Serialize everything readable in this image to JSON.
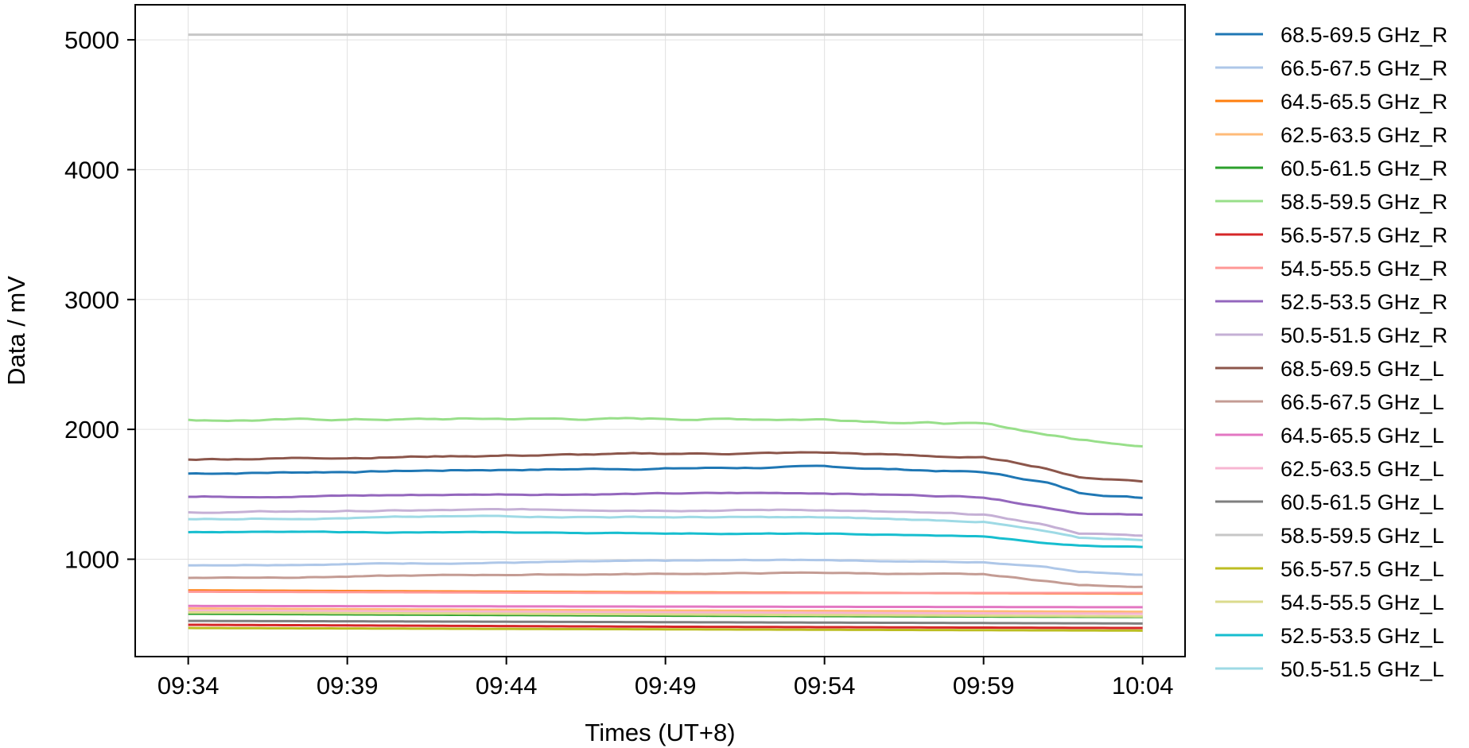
{
  "chart_data": {
    "type": "line",
    "title": "",
    "xlabel": "Times (UT+8)",
    "ylabel": "Data / mV",
    "x_ticks": [
      "09:34",
      "09:39",
      "09:44",
      "09:49",
      "09:54",
      "09:59",
      "10:04"
    ],
    "x_range": [
      "09:32:20",
      "10:05:20"
    ],
    "x_data_range": [
      "09:34",
      "10:04"
    ],
    "ylim": [
      250,
      5270
    ],
    "y_ticks": [
      1000,
      2000,
      3000,
      4000,
      5000
    ],
    "grid": true,
    "legend_position": "outside-right",
    "series": [
      {
        "name": "68.5-69.5 GHz_R",
        "color": "#1f77b4",
        "x": [
          "09:34",
          "09:44",
          "09:54",
          "09:59",
          "10:01",
          "10:02",
          "10:04"
        ],
        "values": [
          1660,
          1690,
          1710,
          1670,
          1590,
          1510,
          1475
        ],
        "noise": 8
      },
      {
        "name": "66.5-67.5 GHz_R",
        "color": "#aec7e8",
        "x": [
          "09:34",
          "09:44",
          "09:54",
          "09:59",
          "10:01",
          "10:02",
          "10:04"
        ],
        "values": [
          955,
          975,
          995,
          975,
          945,
          905,
          885
        ],
        "noise": 5
      },
      {
        "name": "64.5-65.5 GHz_R",
        "color": "#ff7f0e",
        "x": [
          "09:34",
          "09:49",
          "10:04"
        ],
        "values": [
          760,
          745,
          735
        ],
        "noise": 0
      },
      {
        "name": "62.5-63.5 GHz_R",
        "color": "#ffbb78",
        "x": [
          "09:34",
          "09:49",
          "10:04"
        ],
        "values": [
          620,
          605,
          595
        ],
        "noise": 0
      },
      {
        "name": "60.5-61.5 GHz_R",
        "color": "#2ca02c",
        "x": [
          "09:34",
          "09:49",
          "10:04"
        ],
        "values": [
          580,
          565,
          555
        ],
        "noise": 0
      },
      {
        "name": "58.5-59.5 GHz_R",
        "color": "#98df8a",
        "x": [
          "09:34",
          "09:44",
          "09:54",
          "09:59",
          "10:01",
          "10:02",
          "10:04"
        ],
        "values": [
          2070,
          2080,
          2080,
          2040,
          1960,
          1920,
          1880
        ],
        "noise": 10
      },
      {
        "name": "56.5-57.5 GHz_R",
        "color": "#d62728",
        "x": [
          "09:34",
          "09:49",
          "10:04"
        ],
        "values": [
          495,
          480,
          470
        ],
        "noise": 0
      },
      {
        "name": "54.5-55.5 GHz_R",
        "color": "#ff9896",
        "x": [
          "09:34",
          "09:49",
          "10:04"
        ],
        "values": [
          750,
          740,
          740
        ],
        "noise": 0
      },
      {
        "name": "52.5-53.5 GHz_R",
        "color": "#9467bd",
        "x": [
          "09:34",
          "09:44",
          "09:54",
          "09:59",
          "10:01",
          "10:02",
          "10:04"
        ],
        "values": [
          1480,
          1500,
          1510,
          1480,
          1400,
          1360,
          1340
        ],
        "noise": 6
      },
      {
        "name": "50.5-51.5 GHz_R",
        "color": "#c5b0d5",
        "x": [
          "09:34",
          "09:44",
          "09:54",
          "09:59",
          "10:01",
          "10:02",
          "10:04"
        ],
        "values": [
          1360,
          1380,
          1380,
          1340,
          1260,
          1200,
          1180
        ],
        "noise": 6
      },
      {
        "name": "68.5-69.5 GHz_L",
        "color": "#8c564b",
        "x": [
          "09:34",
          "09:44",
          "09:54",
          "09:59",
          "10:01",
          "10:02",
          "10:04"
        ],
        "values": [
          1770,
          1800,
          1820,
          1780,
          1700,
          1630,
          1605
        ],
        "noise": 8
      },
      {
        "name": "66.5-67.5 GHz_L",
        "color": "#c49c94",
        "x": [
          "09:34",
          "09:44",
          "09:54",
          "09:59",
          "10:01",
          "10:02",
          "10:04"
        ],
        "values": [
          855,
          880,
          895,
          880,
          830,
          800,
          790
        ],
        "noise": 5
      },
      {
        "name": "64.5-65.5 GHz_L",
        "color": "#e377c2",
        "x": [
          "09:34",
          "09:49",
          "10:04"
        ],
        "values": [
          640,
          635,
          630
        ],
        "noise": 0
      },
      {
        "name": "62.5-63.5 GHz_L",
        "color": "#f7b6d2",
        "x": [
          "09:34",
          "09:49",
          "10:04"
        ],
        "values": [
          605,
          590,
          580
        ],
        "noise": 0
      },
      {
        "name": "60.5-61.5 GHz_L",
        "color": "#7f7f7f",
        "x": [
          "09:34",
          "09:49",
          "10:04"
        ],
        "values": [
          525,
          515,
          505
        ],
        "noise": 0
      },
      {
        "name": "58.5-59.5 GHz_L",
        "color": "#c7c7c7",
        "x": [
          "09:34",
          "09:49",
          "10:04"
        ],
        "values": [
          5040,
          5040,
          5040
        ],
        "noise": 0
      },
      {
        "name": "56.5-57.5 GHz_L",
        "color": "#bcbd22",
        "x": [
          "09:34",
          "09:49",
          "10:04"
        ],
        "values": [
          470,
          460,
          450
        ],
        "noise": 0
      },
      {
        "name": "54.5-55.5 GHz_L",
        "color": "#dbdb8d",
        "x": [
          "09:34",
          "09:49",
          "10:04"
        ],
        "values": [
          590,
          575,
          560
        ],
        "noise": 0
      },
      {
        "name": "52.5-53.5 GHz_L",
        "color": "#17becf",
        "x": [
          "09:34",
          "09:44",
          "09:54",
          "09:59",
          "10:01",
          "10:02",
          "10:04"
        ],
        "values": [
          1210,
          1205,
          1195,
          1175,
          1120,
          1105,
          1095
        ],
        "noise": 4
      },
      {
        "name": "50.5-51.5 GHz_L",
        "color": "#9edae5",
        "x": [
          "09:34",
          "09:44",
          "09:54",
          "09:59",
          "10:01",
          "10:02",
          "10:04"
        ],
        "values": [
          1310,
          1330,
          1320,
          1290,
          1210,
          1160,
          1150
        ],
        "noise": 6
      }
    ]
  }
}
